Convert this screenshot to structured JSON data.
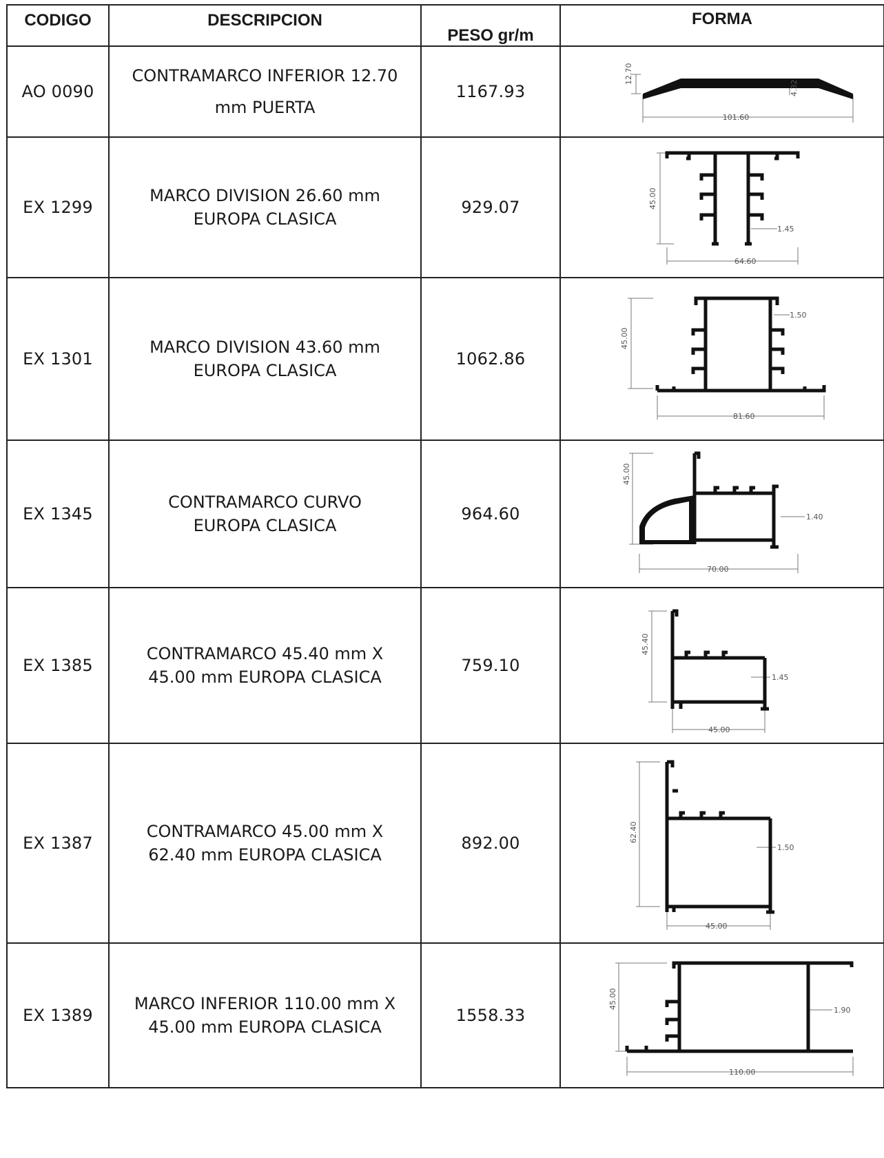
{
  "headers": {
    "codigo": "CODIGO",
    "descripcion": "DESCRIPCION",
    "peso": "PESO gr/m",
    "forma": "FORMA"
  },
  "rows": [
    {
      "codigo": "AO 0090",
      "descripcion": "CONTRAMARCO INFERIOR 12.70 mm PUERTA",
      "peso": "1167.93",
      "dims": [
        "12.70",
        "4.32",
        "101.60"
      ]
    },
    {
      "codigo": "EX 1299",
      "descripcion": "MARCO DIVISION 26.60 mm EUROPA CLASICA",
      "peso": "929.07",
      "dims": [
        "45.00",
        "1.45",
        "64.60"
      ]
    },
    {
      "codigo": "EX 1301",
      "descripcion": "MARCO DIVISION 43.60 mm EUROPA CLASICA",
      "peso": "1062.86",
      "dims": [
        "45.00",
        "1.50",
        "81.60"
      ]
    },
    {
      "codigo": "EX 1345",
      "descripcion": "CONTRAMARCO CURVO EUROPA CLASICA",
      "peso": "964.60",
      "dims": [
        "45.00",
        "1.40",
        "70.00"
      ]
    },
    {
      "codigo": "EX 1385",
      "descripcion": "CONTRAMARCO 45.40 mm X 45.00 mm EUROPA CLASICA",
      "peso": "759.10",
      "dims": [
        "45.40",
        "1.45",
        "45.00"
      ]
    },
    {
      "codigo": "EX 1387",
      "descripcion": "CONTRAMARCO 45.00 mm X 62.40 mm EUROPA CLASICA",
      "peso": "892.00",
      "dims": [
        "62.40",
        "1.50",
        "45.00"
      ]
    },
    {
      "codigo": "EX 1389",
      "descripcion": "MARCO INFERIOR 110.00 mm X 45.00 mm EUROPA CLASICA",
      "peso": "1558.33",
      "dims": [
        "45.00",
        "1.90",
        "110.00"
      ]
    }
  ]
}
